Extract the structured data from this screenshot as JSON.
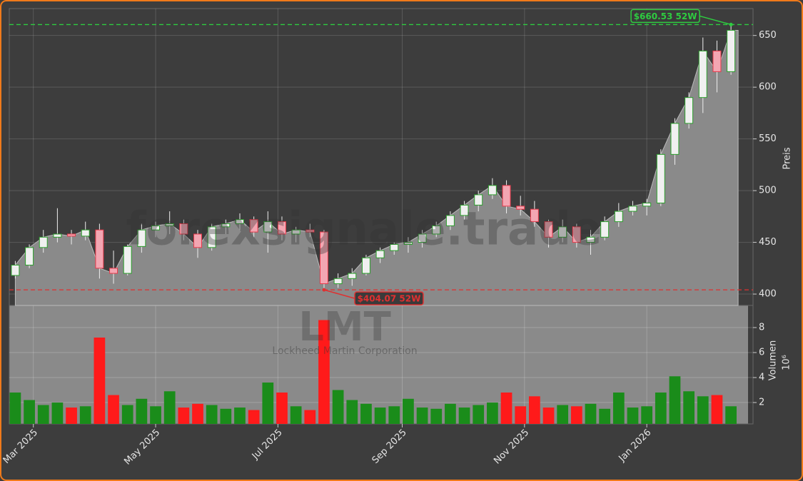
{
  "chart_data": {
    "type": "candlestick",
    "watermark": "forexsignale.trade",
    "symbol": "LMT",
    "company": "Lockheed Martin Corporation",
    "x": [
      "2025-02-17",
      "2025-02-24",
      "2025-03-03",
      "2025-03-10",
      "2025-03-17",
      "2025-03-24",
      "2025-03-31",
      "2025-04-07",
      "2025-04-14",
      "2025-04-21",
      "2025-04-28",
      "2025-05-05",
      "2025-05-12",
      "2025-05-19",
      "2025-05-26",
      "2025-06-02",
      "2025-06-09",
      "2025-06-16",
      "2025-06-23",
      "2025-06-30",
      "2025-07-07",
      "2025-07-14",
      "2025-07-21",
      "2025-07-28",
      "2025-08-04",
      "2025-08-11",
      "2025-08-18",
      "2025-08-25",
      "2025-09-01",
      "2025-09-08",
      "2025-09-15",
      "2025-09-22",
      "2025-09-29",
      "2025-10-06",
      "2025-10-13",
      "2025-10-20",
      "2025-10-27",
      "2025-11-03",
      "2025-11-10",
      "2025-11-17",
      "2025-11-24",
      "2025-12-01",
      "2025-12-08",
      "2025-12-15",
      "2025-12-22",
      "2025-12-29",
      "2026-01-05",
      "2026-01-12",
      "2026-01-19",
      "2026-01-26",
      "2026-02-02",
      "2026-02-09"
    ],
    "open": [
      418,
      428,
      445,
      455,
      458,
      456,
      462,
      425,
      420,
      446,
      462,
      466,
      468,
      458,
      445,
      465,
      468,
      472,
      460,
      470,
      458,
      462,
      460,
      410,
      415,
      420,
      435,
      442,
      448,
      450,
      458,
      466,
      476,
      486,
      496,
      505,
      485,
      482,
      470,
      455,
      465,
      450,
      455,
      470,
      480,
      485,
      488,
      535,
      565,
      590,
      635,
      615
    ],
    "high": [
      432,
      448,
      462,
      483,
      462,
      470,
      468,
      442,
      448,
      468,
      470,
      480,
      472,
      462,
      468,
      472,
      478,
      475,
      480,
      475,
      465,
      468,
      462,
      420,
      425,
      438,
      445,
      450,
      455,
      462,
      470,
      480,
      490,
      500,
      512,
      510,
      495,
      490,
      472,
      472,
      468,
      462,
      475,
      488,
      490,
      492,
      540,
      570,
      595,
      648,
      645,
      660.53
    ],
    "low": [
      415,
      425,
      440,
      450,
      448,
      452,
      415,
      410,
      418,
      440,
      455,
      458,
      452,
      435,
      442,
      458,
      462,
      455,
      440,
      452,
      450,
      455,
      404.07,
      406,
      408,
      418,
      430,
      438,
      440,
      445,
      455,
      462,
      472,
      480,
      492,
      478,
      476,
      465,
      445,
      450,
      445,
      438,
      452,
      465,
      476,
      476,
      485,
      525,
      560,
      575,
      595,
      612
    ],
    "close": [
      428,
      445,
      455,
      458,
      456,
      462,
      425,
      420,
      446,
      462,
      466,
      468,
      458,
      445,
      465,
      468,
      472,
      460,
      470,
      458,
      462,
      460,
      410,
      415,
      420,
      435,
      442,
      448,
      450,
      458,
      466,
      476,
      486,
      496,
      505,
      485,
      482,
      470,
      455,
      465,
      450,
      455,
      470,
      480,
      485,
      488,
      535,
      565,
      590,
      635,
      615,
      655
    ],
    "volume": [
      2.8,
      2.2,
      1.8,
      2.0,
      1.6,
      1.7,
      7.2,
      2.6,
      1.8,
      2.3,
      1.7,
      2.9,
      1.6,
      1.9,
      1.8,
      1.5,
      1.6,
      1.4,
      3.6,
      2.8,
      1.7,
      1.4,
      8.6,
      3.0,
      2.2,
      1.9,
      1.6,
      1.7,
      2.3,
      1.6,
      1.5,
      1.9,
      1.6,
      1.8,
      2.0,
      2.8,
      1.7,
      2.5,
      1.6,
      1.8,
      1.7,
      1.9,
      1.5,
      2.8,
      1.6,
      1.7,
      2.8,
      4.1,
      2.9,
      2.5,
      2.6,
      1.7
    ],
    "up_color": "#2ca02c",
    "down_color": "#e8394a",
    "volume_up_color": "#1a8c1a",
    "volume_down_color": "#ff1a1a",
    "area_color": "#8a8a8a",
    "xlim": [
      "2025-02-17",
      "2026-02-23"
    ],
    "xticks": [
      {
        "value": "2025-03-01",
        "label": "Mar 2025"
      },
      {
        "value": "2025-05-01",
        "label": "May 2025"
      },
      {
        "value": "2025-07-01",
        "label": "Jul 2025"
      },
      {
        "value": "2025-09-01",
        "label": "Sep 2025"
      },
      {
        "value": "2025-11-01",
        "label": "Nov 2025"
      },
      {
        "value": "2026-01-01",
        "label": "Jan 2026"
      }
    ],
    "ylim": [
      389,
      676
    ],
    "yticks": [
      400,
      450,
      500,
      550,
      600,
      650
    ],
    "ylabel": "Preis",
    "y2lim": [
      0.29,
      9.77
    ],
    "y2ticks": [
      2,
      4,
      6,
      8
    ],
    "y2label": "Volumen",
    "y2scale_label": "10⁶",
    "annotations": [
      {
        "text": "$660.53 52W",
        "value": 660.53,
        "color": "#2ecc40"
      },
      {
        "text": "$404.07 52W",
        "value": 404.07,
        "color": "#e03030"
      }
    ],
    "grid": true
  }
}
